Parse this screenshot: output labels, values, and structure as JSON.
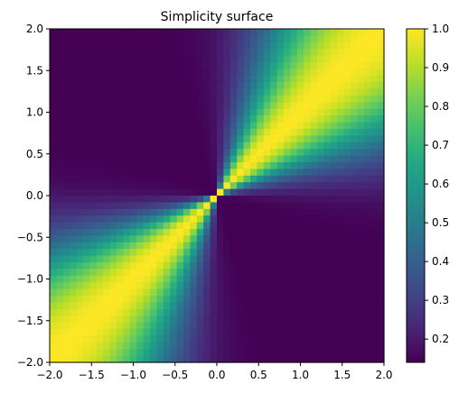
{
  "chart_data": {
    "type": "heatmap",
    "title": "Simplicity surface",
    "xlabel": "",
    "ylabel": "",
    "xlim": [
      -2.0,
      2.0
    ],
    "ylim": [
      -2.0,
      2.0
    ],
    "grid_resolution": 50,
    "value_function": "1 - |angle(x,y) - 45deg| / 90deg, min 0.14 off-diagonal, 1.0 on diagonal y=x",
    "value_range": [
      0.14,
      1.0
    ],
    "x_ticks": [
      "−2.0",
      "−1.5",
      "−1.0",
      "−0.5",
      "0.0",
      "0.5",
      "1.0",
      "1.5",
      "2.0"
    ],
    "y_ticks": [
      "−2.0",
      "−1.5",
      "−1.0",
      "−0.5",
      "0.0",
      "0.5",
      "1.0",
      "1.5",
      "2.0"
    ],
    "colorbar": {
      "colormap": "viridis",
      "ticks": [
        "0.2",
        "0.3",
        "0.4",
        "0.5",
        "0.6",
        "0.7",
        "0.8",
        "0.9",
        "1.0"
      ],
      "tick_values": [
        0.2,
        0.3,
        0.4,
        0.5,
        0.6,
        0.7,
        0.8,
        0.9,
        1.0
      ]
    },
    "grid": false
  }
}
